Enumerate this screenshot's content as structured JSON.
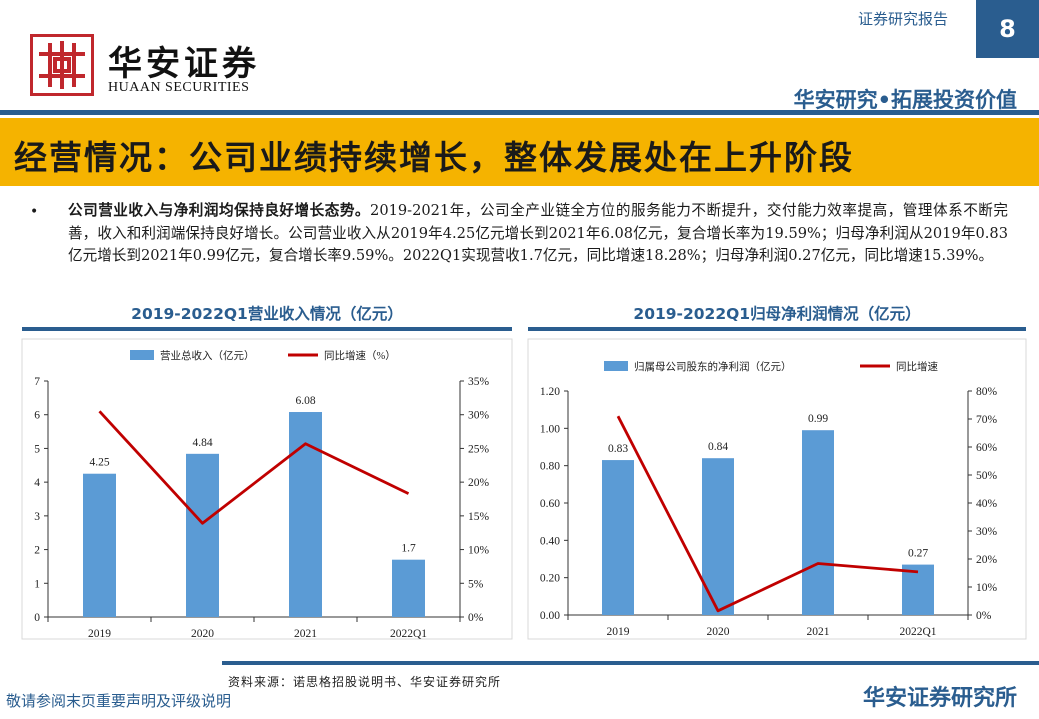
{
  "header": {
    "logo_cn": "华安证券",
    "logo_en": "HUAAN SECURITIES",
    "doc_type": "证券研究报告",
    "page_number": "8",
    "slogan": "华安研究•拓展投资价值",
    "brand_color": "#c0282d",
    "accent_color": "#2a5d8f",
    "band_color": "#f5b300"
  },
  "title": "经营情况：公司业绩持续增长，整体发展处在上升阶段",
  "bullet": {
    "marker": "•",
    "lead": "公司营业收入与净利润均保持良好增长态势。",
    "text": "2019-2021年，公司全产业链全方位的服务能力不断提升，交付能力效率提高，管理体系不断完善，收入和利润端保持良好增长。公司营业收入从2019年4.25亿元增长到2021年6.08亿元，复合增长率为19.59%；归母净利润从2019年0.83亿元增长到2021年0.99亿元，复合增长率9.59%。2022Q1实现营收1.7亿元，同比增速18.28%；归母净利润0.27亿元，同比增速15.39%。"
  },
  "chart_data": [
    {
      "type": "bar",
      "title": "2019-2022Q1营业收入情况（亿元）",
      "categories": [
        "2019",
        "2020",
        "2021",
        "2022Q1"
      ],
      "series": [
        {
          "name": "营业总收入（亿元）",
          "type": "bar",
          "axis": "left",
          "values": [
            4.25,
            4.84,
            6.08,
            1.7
          ],
          "labels": [
            "4.25",
            "4.84",
            "6.08",
            "1.7"
          ],
          "color": "#5b9bd5"
        },
        {
          "name": "同比增速（%）",
          "type": "line",
          "axis": "right",
          "values": [
            30.5,
            13.9,
            25.7,
            18.3
          ],
          "color": "#c00000"
        }
      ],
      "ylim": [
        0,
        7
      ],
      "yticks": [
        "0",
        "1",
        "2",
        "3",
        "4",
        "5",
        "6",
        "7"
      ],
      "y2lim": [
        0,
        35
      ],
      "y2ticks": [
        "0%",
        "5%",
        "10%",
        "15%",
        "20%",
        "25%",
        "30%",
        "35%"
      ],
      "legend": "top"
    },
    {
      "type": "bar",
      "title": "2019-2022Q1归母净利润情况（亿元）",
      "categories": [
        "2019",
        "2020",
        "2021",
        "2022Q1"
      ],
      "series": [
        {
          "name": "归属母公司股东的净利润（亿元）",
          "type": "bar",
          "axis": "left",
          "values": [
            0.83,
            0.84,
            0.99,
            0.27
          ],
          "labels": [
            "0.83",
            "0.84",
            "0.99",
            "0.27"
          ],
          "color": "#5b9bd5"
        },
        {
          "name": "同比增速",
          "type": "line",
          "axis": "right",
          "values": [
            71,
            1.5,
            18.4,
            15.4
          ],
          "color": "#c00000"
        }
      ],
      "ylim": [
        0,
        1.2
      ],
      "yticks": [
        "0.00",
        "0.20",
        "0.40",
        "0.60",
        "0.80",
        "1.00",
        "1.20"
      ],
      "y2lim": [
        0,
        80
      ],
      "y2ticks": [
        "0%",
        "10%",
        "20%",
        "30%",
        "40%",
        "50%",
        "60%",
        "70%",
        "80%"
      ],
      "legend": "top"
    }
  ],
  "source": "资料来源：诺思格招股说明书、华安证券研究所",
  "footer": {
    "disclaimer_link": "敬请参阅末页重要声明及评级说明",
    "brand": "华安证券研究所"
  }
}
